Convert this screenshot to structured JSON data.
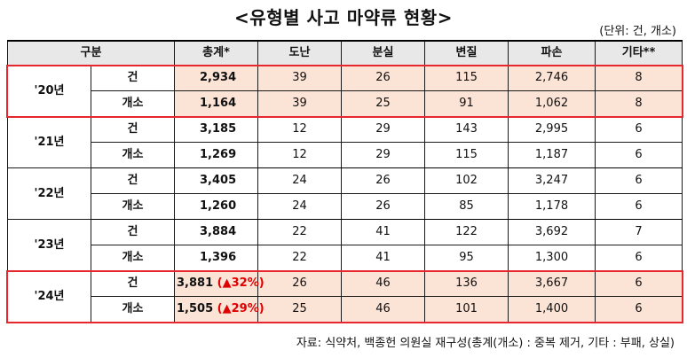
{
  "title": "<유형별 사고 마약류 현황>",
  "unit": "(단위: 건, 개소)",
  "headers": [
    "구분",
    "총계*",
    "도난",
    "분실",
    "변질",
    "파손",
    "기타**"
  ],
  "rows": [
    {
      "year": "'20년",
      "highlight": true,
      "items": [
        {
          "kind": "건",
          "total": "2,934",
          "change": "",
          "values": [
            "39",
            "26",
            "115",
            "2,746",
            "8"
          ]
        },
        {
          "kind": "개소",
          "total": "1,164",
          "change": "",
          "values": [
            "39",
            "25",
            "91",
            "1,062",
            "8"
          ]
        }
      ]
    },
    {
      "year": "'21년",
      "highlight": false,
      "items": [
        {
          "kind": "건",
          "total": "3,185",
          "change": "",
          "values": [
            "12",
            "29",
            "143",
            "2,995",
            "6"
          ]
        },
        {
          "kind": "개소",
          "total": "1,269",
          "change": "",
          "values": [
            "12",
            "29",
            "115",
            "1,187",
            "6"
          ]
        }
      ]
    },
    {
      "year": "'22년",
      "highlight": false,
      "items": [
        {
          "kind": "건",
          "total": "3,405",
          "change": "",
          "values": [
            "24",
            "26",
            "102",
            "3,247",
            "6"
          ]
        },
        {
          "kind": "개소",
          "total": "1,260",
          "change": "",
          "values": [
            "24",
            "26",
            "85",
            "1,178",
            "6"
          ]
        }
      ]
    },
    {
      "year": "'23년",
      "highlight": false,
      "items": [
        {
          "kind": "건",
          "total": "3,884",
          "change": "",
          "values": [
            "22",
            "41",
            "122",
            "3,692",
            "7"
          ]
        },
        {
          "kind": "개소",
          "total": "1,396",
          "change": "",
          "values": [
            "22",
            "41",
            "95",
            "1,300",
            "6"
          ]
        }
      ]
    },
    {
      "year": "'24년",
      "highlight": true,
      "items": [
        {
          "kind": "건",
          "total": "3,881",
          "change": "(▲32%)",
          "values": [
            "26",
            "46",
            "136",
            "3,667",
            "6"
          ]
        },
        {
          "kind": "개소",
          "total": "1,505",
          "change": "(▲29%)",
          "values": [
            "25",
            "46",
            "101",
            "1,400",
            "6"
          ]
        }
      ]
    }
  ],
  "source": "자료: 식약처, 백종헌 의원실 재구성(총계(개소) : 중복 제거, 기타 : 부패, 상실)",
  "colors": {
    "highlight_fill": "#fbe3d6",
    "box_border": "#e8262e",
    "change_text": "#e00000",
    "header_fill": "#e8e8e8"
  }
}
